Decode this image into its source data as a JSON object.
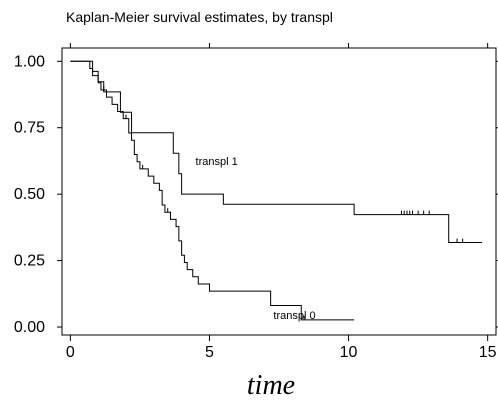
{
  "chart_data": {
    "type": "line",
    "title": "Kaplan-Meier survival estimates, by transpl",
    "xlabel": "time",
    "ylabel": "",
    "xlim": [
      -0.3,
      15.3
    ],
    "ylim": [
      -0.03,
      1.05
    ],
    "x_ticks": [
      0,
      5,
      10,
      15
    ],
    "x_tick_labels": [
      "0",
      "5",
      "10",
      "15"
    ],
    "y_ticks": [
      0,
      0.25,
      0.5,
      0.75,
      1
    ],
    "y_tick_labels": [
      "0.00",
      "0.25",
      "0.50",
      "0.75",
      "1.00"
    ],
    "grid": false,
    "legend": "none",
    "series": [
      {
        "name": "transpl 0",
        "color": "#000000",
        "step_x": [
          0,
          0.7,
          0.8,
          1.0,
          1.1,
          1.3,
          1.5,
          1.7,
          1.9,
          2.1,
          2.2,
          2.3,
          2.4,
          2.5,
          2.8,
          3.0,
          3.2,
          3.3,
          3.4,
          3.6,
          3.8,
          3.9,
          4.0,
          4.1,
          4.2,
          4.4,
          4.6,
          5.0,
          5.7,
          7.2,
          8.3,
          10.2
        ],
        "step_y": [
          1.0,
          0.973,
          0.946,
          0.919,
          0.892,
          0.865,
          0.838,
          0.811,
          0.784,
          0.73,
          0.703,
          0.649,
          0.622,
          0.595,
          0.568,
          0.541,
          0.514,
          0.459,
          0.432,
          0.405,
          0.378,
          0.324,
          0.27,
          0.243,
          0.216,
          0.189,
          0.162,
          0.135,
          0.135,
          0.081,
          0.027,
          0.027
        ],
        "censor_x": [
          1.2,
          2.0,
          2.6,
          3.5,
          8.4
        ],
        "label": "transpl 0",
        "label_x": 7.3,
        "label_y": 0.03
      },
      {
        "name": "transpl 1",
        "color": "#000000",
        "step_x": [
          0,
          0.8,
          1.0,
          1.2,
          1.8,
          2.2,
          3.7,
          3.9,
          4.0,
          5.5,
          10.2,
          13.6,
          14.8
        ],
        "step_y": [
          1.0,
          0.962,
          0.923,
          0.885,
          0.808,
          0.731,
          0.654,
          0.577,
          0.5,
          0.462,
          0.423,
          0.318,
          0.318
        ],
        "censor_x": [
          11.9,
          12.0,
          12.1,
          12.2,
          12.3,
          12.5,
          12.7,
          12.9,
          13.9,
          14.1
        ],
        "label": "transpl 1",
        "label_x": 4.5,
        "label_y": 0.61
      }
    ]
  }
}
